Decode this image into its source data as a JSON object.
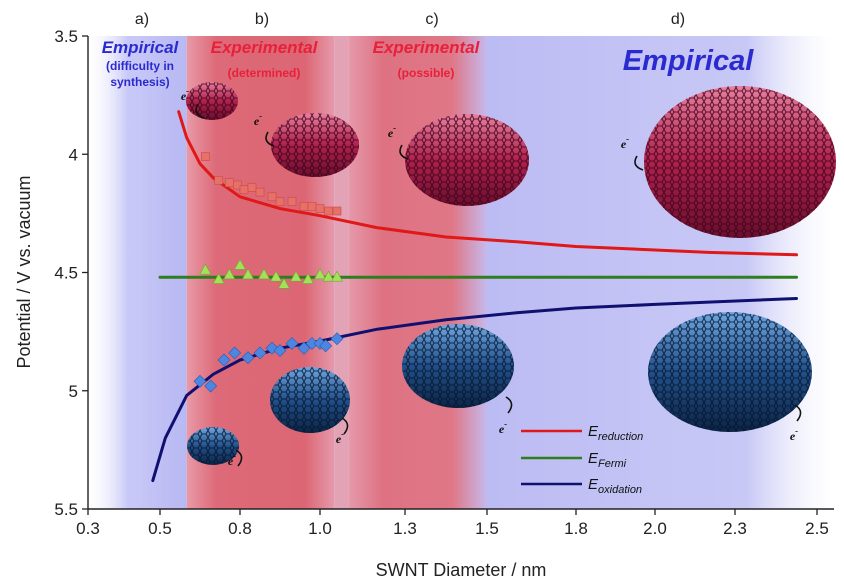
{
  "chart_data": {
    "type": "scatter",
    "xlabel": "SWNT Diameter / nm",
    "ylabel": "Potential / V vs. vacuum",
    "xlim": [
      0.3,
      2.55
    ],
    "ylim": [
      3.5,
      5.5
    ],
    "y_inverted": true,
    "x_ticks": [
      "0.3",
      "0.5",
      "0.8",
      "1.0",
      "1.3",
      "1.5",
      "1.8",
      "2.0",
      "2.3",
      "2.5"
    ],
    "y_ticks": [
      "3.5",
      "4",
      "4.5",
      "5",
      "5.5"
    ],
    "panels": [
      "a)",
      "b)",
      "c)",
      "d)"
    ],
    "regions": [
      {
        "title": "Empirical",
        "subtitle": "(difficulty in synthesis)",
        "x_range": [
          0.3,
          0.6
        ],
        "color": "#2a2ad0"
      },
      {
        "title": "Experimental",
        "subtitle": "(determined)",
        "x_range": [
          0.6,
          1.05
        ],
        "color": "#e8203a"
      },
      {
        "title": "Experimental",
        "subtitle": "(possible)",
        "x_range": [
          1.1,
          1.5
        ],
        "color": "#e8203a"
      },
      {
        "title": "Empirical",
        "subtitle": "",
        "x_range": [
          1.5,
          2.55
        ],
        "color": "#2a2ad0"
      }
    ],
    "region_sub_lines": {
      "a": [
        "(difficulty in",
        "synthesis)"
      ]
    },
    "series": [
      {
        "name": "E_reduction",
        "label_main": "E",
        "label_sub": "reduction",
        "color": "#e01818",
        "x": [
          0.57,
          0.6,
          0.65,
          0.7,
          0.8,
          0.9,
          1.0,
          1.2,
          1.4,
          1.6,
          1.8,
          2.0,
          2.2,
          2.45
        ],
        "y": [
          3.82,
          3.93,
          4.04,
          4.1,
          4.18,
          4.23,
          4.26,
          4.31,
          4.35,
          4.37,
          4.39,
          4.405,
          4.415,
          4.425
        ]
      },
      {
        "name": "E_Fermi",
        "label_main": "E",
        "label_sub": "Fermi",
        "color": "#2e7d1f",
        "x": [
          0.5,
          2.45
        ],
        "y": [
          4.52,
          4.52
        ]
      },
      {
        "name": "E_oxidation",
        "label_main": "E",
        "label_sub": "oxidation",
        "color": "#101070",
        "x": [
          0.48,
          0.52,
          0.6,
          0.7,
          0.8,
          0.9,
          1.0,
          1.2,
          1.4,
          1.6,
          1.8,
          2.0,
          2.2,
          2.45
        ],
        "y": [
          5.38,
          5.2,
          5.02,
          4.93,
          4.87,
          4.82,
          4.79,
          4.74,
          4.7,
          4.67,
          4.65,
          4.635,
          4.625,
          4.61
        ]
      }
    ],
    "points": {
      "reduction": [
        [
          0.67,
          4.01
        ],
        [
          0.72,
          4.11
        ],
        [
          0.76,
          4.12
        ],
        [
          0.79,
          4.13
        ],
        [
          0.81,
          4.15
        ],
        [
          0.83,
          4.14
        ],
        [
          0.85,
          4.16
        ],
        [
          0.88,
          4.18
        ],
        [
          0.9,
          4.2
        ],
        [
          0.93,
          4.2
        ],
        [
          0.96,
          4.22
        ],
        [
          0.98,
          4.22
        ],
        [
          1.0,
          4.23
        ],
        [
          1.03,
          4.24
        ],
        [
          1.06,
          4.24
        ]
      ],
      "fermi": [
        [
          0.67,
          4.49
        ],
        [
          0.72,
          4.53
        ],
        [
          0.76,
          4.51
        ],
        [
          0.8,
          4.47
        ],
        [
          0.82,
          4.51
        ],
        [
          0.86,
          4.51
        ],
        [
          0.89,
          4.52
        ],
        [
          0.91,
          4.55
        ],
        [
          0.94,
          4.52
        ],
        [
          0.97,
          4.53
        ],
        [
          1.0,
          4.51
        ],
        [
          1.03,
          4.52
        ],
        [
          1.06,
          4.52
        ]
      ],
      "oxidation": [
        [
          0.65,
          4.96
        ],
        [
          0.69,
          4.98
        ],
        [
          0.74,
          4.87
        ],
        [
          0.78,
          4.84
        ],
        [
          0.82,
          4.86
        ],
        [
          0.85,
          4.84
        ],
        [
          0.88,
          4.82
        ],
        [
          0.9,
          4.83
        ],
        [
          0.93,
          4.8
        ],
        [
          0.96,
          4.82
        ],
        [
          0.98,
          4.8
        ],
        [
          1.0,
          4.8
        ],
        [
          1.02,
          4.81
        ],
        [
          1.06,
          4.78
        ]
      ]
    },
    "electron_label": "e",
    "electron_sup": "-"
  }
}
